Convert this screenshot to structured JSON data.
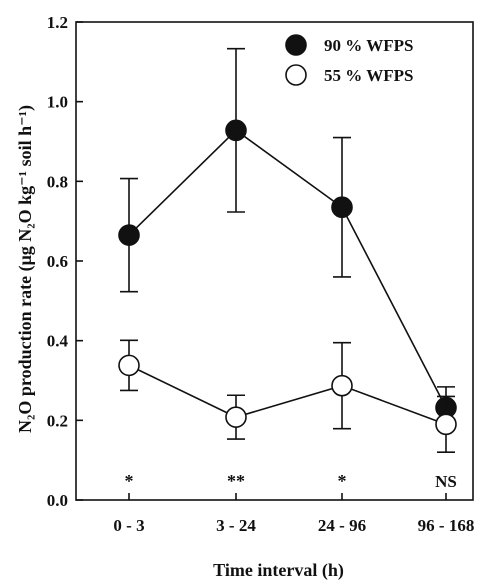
{
  "chart_data": {
    "type": "line",
    "title": "",
    "xlabel": "Time interval (h)",
    "ylabel": "N₂O production rate (μg N₂O kg⁻¹ soil h⁻¹)",
    "categories": [
      "0 - 3",
      "3 - 24",
      "24 - 96",
      "96 - 168"
    ],
    "ylim": [
      0.0,
      1.2
    ],
    "yticks": [
      "0.0",
      "0.2",
      "0.4",
      "0.6",
      "0.8",
      "1.0",
      "1.2"
    ],
    "grid": false,
    "legend_position": "top-right",
    "series": [
      {
        "name": "90 % WFPS",
        "marker": "filled-circle",
        "color": "#111111",
        "values": [
          0.665,
          0.928,
          0.735,
          0.232
        ],
        "error": [
          0.142,
          0.205,
          0.175,
          0.052
        ]
      },
      {
        "name": "55 % WFPS",
        "marker": "open-circle",
        "color": "#111111",
        "values": [
          0.338,
          0.208,
          0.287,
          0.19
        ],
        "error": [
          0.063,
          0.055,
          0.108,
          0.07
        ]
      }
    ],
    "annotations": [
      "*",
      "**",
      "*",
      "NS"
    ]
  }
}
